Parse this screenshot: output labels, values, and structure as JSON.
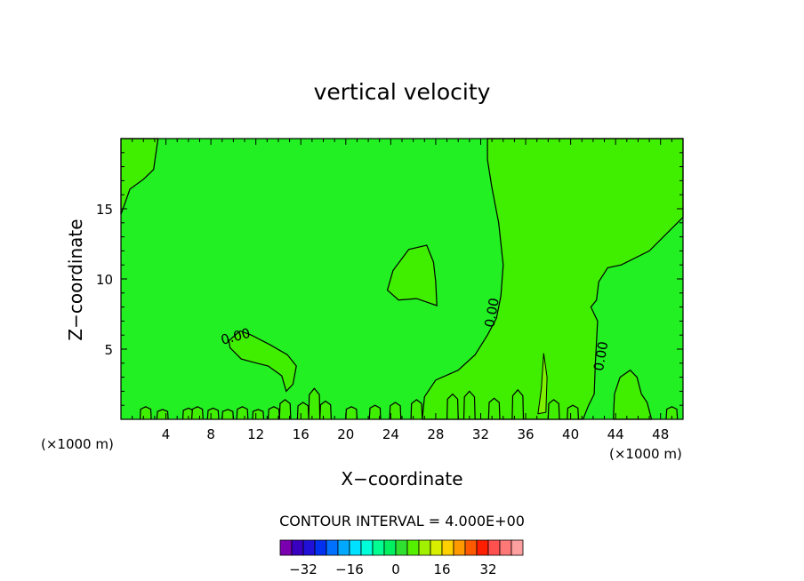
{
  "chart_data": {
    "type": "heatmap",
    "title": "vertical velocity",
    "xlabel": "X−coordinate",
    "ylabel": "Z−coordinate",
    "x_unit_left": "(×1000 m)",
    "x_unit_right": "(×1000 m)",
    "xlim": [
      0,
      50
    ],
    "ylim": [
      0,
      20
    ],
    "x_ticks": [
      4,
      8,
      12,
      16,
      20,
      24,
      28,
      32,
      36,
      40,
      44,
      48
    ],
    "x_tick_labels": [
      "4",
      "8",
      "12",
      "16",
      "20",
      "24",
      "28",
      "32",
      "36",
      "40",
      "44",
      "48"
    ],
    "y_ticks": [
      5,
      10,
      15
    ],
    "y_tick_labels": [
      "5",
      "10",
      "15"
    ],
    "contour_interval_label": "CONTOUR INTERVAL = 4.000E+00",
    "contour_labels": [
      {
        "text": "0.00",
        "x": 10.2,
        "y": 5.9,
        "angle": -15
      },
      {
        "text": "0.00",
        "x": 33.0,
        "y": 7.6,
        "angle": -80
      },
      {
        "text": "0.00",
        "x": 42.7,
        "y": 4.5,
        "angle": -80
      }
    ],
    "regions": {
      "background_value_range": [
        -4,
        0
      ],
      "positive_value_range": [
        0,
        4
      ]
    },
    "colorbar": {
      "colors": [
        "#7a00b0",
        "#3a00c0",
        "#2010d8",
        "#0030f0",
        "#0070ff",
        "#00a8ff",
        "#00e0ff",
        "#00ffd8",
        "#00ff90",
        "#00f060",
        "#30e030",
        "#55f000",
        "#a0f000",
        "#d8f000",
        "#ffd000",
        "#ff9a00",
        "#ff5a00",
        "#ff1e00",
        "#ff5050",
        "#ff7878",
        "#ffa0a0"
      ],
      "tick_values": [
        -32,
        -16,
        0,
        16,
        32
      ],
      "tick_labels": [
        "−32",
        "−16",
        "0",
        "16",
        "32"
      ]
    }
  }
}
